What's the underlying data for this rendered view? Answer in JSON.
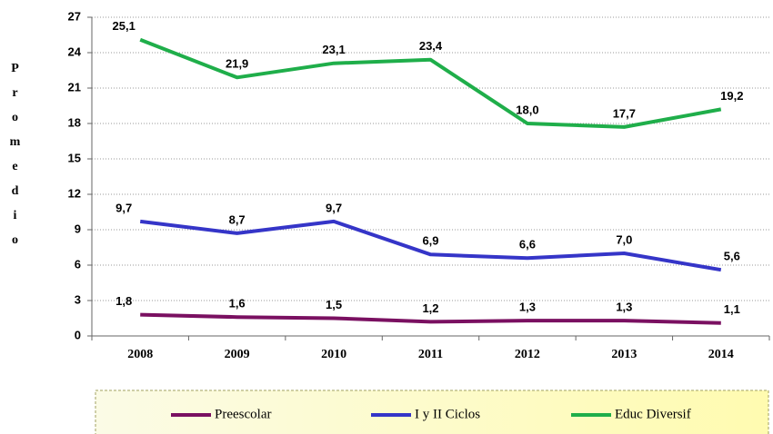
{
  "chart_data": {
    "type": "line",
    "y_label": "Promedio",
    "categories": [
      "2008",
      "2009",
      "2010",
      "2011",
      "2012",
      "2013",
      "2014"
    ],
    "series": [
      {
        "name": "Preescolar",
        "color": "#7a1061",
        "values": [
          1.8,
          1.6,
          1.5,
          1.2,
          1.3,
          1.3,
          1.1
        ],
        "value_labels": [
          "1,8",
          "1,6",
          "1,5",
          "1,2",
          "1,3",
          "1,3",
          "1,1"
        ]
      },
      {
        "name": "I y II Ciclos",
        "color": "#3535c8",
        "values": [
          9.7,
          8.7,
          9.7,
          6.9,
          6.6,
          7.0,
          5.6
        ],
        "value_labels": [
          "9,7",
          "8,7",
          "9,7",
          "6,9",
          "6,6",
          "7,0",
          "5,6"
        ]
      },
      {
        "name": "Educ Diversif",
        "color": "#1fae4a",
        "values": [
          25.1,
          21.9,
          23.1,
          23.4,
          18.0,
          17.7,
          19.2
        ],
        "value_labels": [
          "25,1",
          "21,9",
          "23,1",
          "23,4",
          "18,0",
          "17,7",
          "19,2"
        ]
      }
    ],
    "ylim": [
      0,
      27
    ],
    "yticks": [
      0,
      3,
      6,
      9,
      12,
      15,
      18,
      21,
      24,
      27
    ],
    "grid": true,
    "legend": "bottom"
  }
}
